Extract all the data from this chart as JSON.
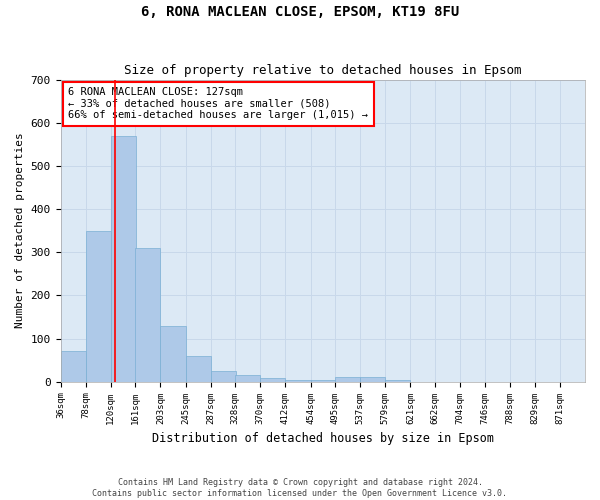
{
  "title": "6, RONA MACLEAN CLOSE, EPSOM, KT19 8FU",
  "subtitle": "Size of property relative to detached houses in Epsom",
  "xlabel": "Distribution of detached houses by size in Epsom",
  "ylabel": "Number of detached properties",
  "bar_color": "#aec9e8",
  "bar_edge_color": "#7aafd4",
  "grid_color": "#c8d8ea",
  "background_color": "#dce9f5",
  "bins": [
    36,
    78,
    120,
    161,
    203,
    245,
    287,
    328,
    370,
    412,
    454,
    495,
    537,
    579,
    621,
    662,
    704,
    746,
    788,
    829,
    871
  ],
  "bin_labels": [
    "36sqm",
    "78sqm",
    "120sqm",
    "161sqm",
    "203sqm",
    "245sqm",
    "287sqm",
    "328sqm",
    "370sqm",
    "412sqm",
    "454sqm",
    "495sqm",
    "537sqm",
    "579sqm",
    "621sqm",
    "662sqm",
    "704sqm",
    "746sqm",
    "788sqm",
    "829sqm",
    "871sqm"
  ],
  "values": [
    70,
    350,
    570,
    310,
    130,
    60,
    25,
    15,
    8,
    3,
    3,
    10,
    10,
    3,
    0,
    0,
    0,
    0,
    0,
    0,
    0
  ],
  "red_line_x": 127,
  "ylim": [
    0,
    700
  ],
  "yticks": [
    0,
    100,
    200,
    300,
    400,
    500,
    600,
    700
  ],
  "annotation_title": "6 RONA MACLEAN CLOSE: 127sqm",
  "annotation_line1": "← 33% of detached houses are smaller (508)",
  "annotation_line2": "66% of semi-detached houses are larger (1,015) →",
  "footer1": "Contains HM Land Registry data © Crown copyright and database right 2024.",
  "footer2": "Contains public sector information licensed under the Open Government Licence v3.0."
}
